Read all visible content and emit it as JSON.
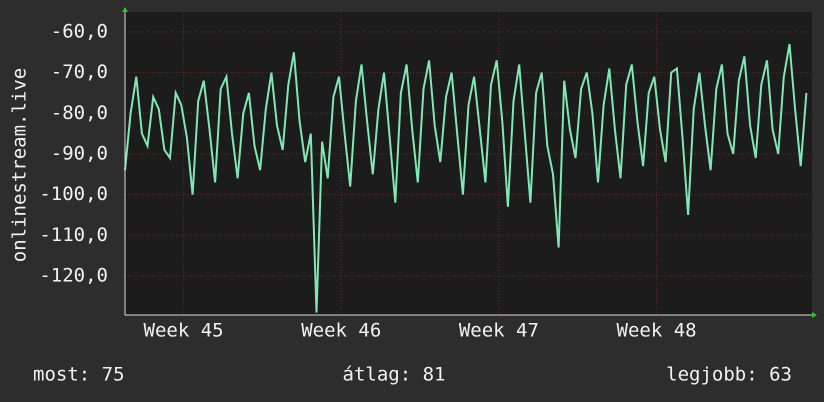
{
  "chart_data": {
    "type": "line",
    "ylabel": "onlinestream.live",
    "x": [
      0,
      0.25,
      0.5,
      0.75,
      1,
      1.25,
      1.5,
      1.75,
      2,
      2.25,
      2.5,
      2.75,
      3,
      3.25,
      3.5,
      3.75,
      4,
      4.25,
      4.5,
      4.75,
      5,
      5.25,
      5.5,
      5.75,
      6,
      6.25,
      6.5,
      6.75,
      7,
      7.25,
      7.5,
      7.75,
      8,
      8.25,
      8.5,
      8.75,
      9,
      9.25,
      9.5,
      9.75,
      10,
      10.25,
      10.5,
      10.75,
      11,
      11.25,
      11.5,
      11.75,
      12,
      12.25,
      12.5,
      12.75,
      13,
      13.25,
      13.5,
      13.75,
      14,
      14.25,
      14.5,
      14.75,
      15,
      15.25,
      15.5,
      15.75,
      16,
      16.25,
      16.5,
      16.75,
      17,
      17.25,
      17.5,
      17.75,
      18,
      18.25,
      18.5,
      18.75,
      19,
      19.25,
      19.5,
      19.75,
      20,
      20.25,
      20.5,
      20.75,
      21,
      21.25,
      21.5,
      21.75,
      22,
      22.25,
      22.5,
      22.75,
      23,
      23.25,
      23.5,
      23.75,
      24,
      24.25,
      24.5,
      24.75,
      25,
      25.25,
      25.5,
      25.75,
      26,
      26.25,
      26.5,
      26.75,
      27,
      27.25,
      27.5,
      27.75,
      28,
      28.25,
      28.5,
      28.75,
      29,
      29.25,
      29.5,
      29.75,
      30,
      30.25
    ],
    "series": [
      {
        "name": "onlinestream.live",
        "color": "#80e8b4",
        "values": [
          -94,
          -80,
          -71,
          -85,
          -88,
          -76,
          -79,
          -89,
          -91,
          -75,
          -78,
          -86,
          -100,
          -77,
          -72,
          -84,
          -97,
          -74,
          -71,
          -85,
          -96,
          -80,
          -75,
          -88,
          -94,
          -79,
          -70,
          -83,
          -89,
          -73,
          -65,
          -82,
          -92,
          -85,
          -129,
          -87,
          -96,
          -76,
          -71,
          -85,
          -98,
          -77,
          -68,
          -82,
          -95,
          -79,
          -70,
          -86,
          -102,
          -75,
          -68,
          -84,
          -97,
          -74,
          -67,
          -83,
          -92,
          -76,
          -70,
          -85,
          -100,
          -78,
          -71,
          -84,
          -97,
          -73,
          -67,
          -82,
          -103,
          -77,
          -68,
          -85,
          -102,
          -75,
          -70,
          -88,
          -95,
          -113,
          -72,
          -84,
          -91,
          -74,
          -70,
          -80,
          -97,
          -78,
          -69,
          -84,
          -96,
          -73,
          -68,
          -82,
          -93,
          -75,
          -71,
          -84,
          -92,
          -70,
          -69,
          -86,
          -105,
          -79,
          -70,
          -83,
          -94,
          -74,
          -68,
          -85,
          -90,
          -72,
          -66,
          -83,
          -91,
          -73,
          -67,
          -84,
          -90,
          -71,
          -63,
          -79,
          -93,
          -75
        ]
      }
    ],
    "xlim": [
      0,
      30.5
    ],
    "xticks": [
      {
        "value": 2.6,
        "label": "Week 45"
      },
      {
        "value": 9.6,
        "label": "Week 46"
      },
      {
        "value": 16.6,
        "label": "Week 47"
      },
      {
        "value": 23.6,
        "label": "Week 48"
      }
    ],
    "ylim": [
      -129.6,
      -55.1
    ],
    "yticks": [
      {
        "value": -60,
        "label": "-60,0"
      },
      {
        "value": -70,
        "label": "-70,0"
      },
      {
        "value": -80,
        "label": "-80,0"
      },
      {
        "value": -90,
        "label": "-90,0"
      },
      {
        "value": -100,
        "label": "-100,0"
      },
      {
        "value": -110,
        "label": "-110,0"
      },
      {
        "value": -120,
        "label": "-120,0"
      }
    ],
    "grid": true,
    "footer": [
      "most: 75",
      "átlag: 81",
      "legjobb: 63"
    ]
  }
}
